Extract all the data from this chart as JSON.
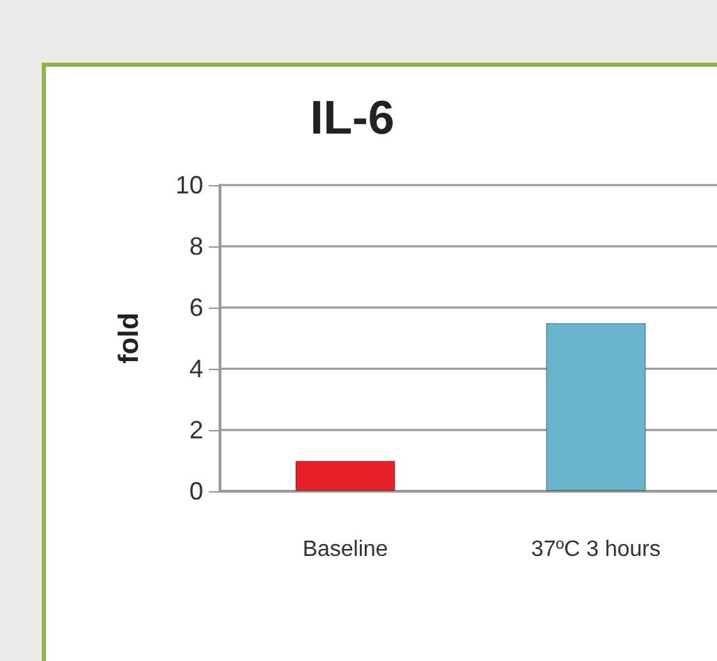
{
  "chart_data": {
    "type": "bar",
    "title": "IL-6",
    "ylabel": "fold",
    "categories": [
      "Baseline",
      "37ºC 3 hours"
    ],
    "values": [
      1,
      5.5
    ],
    "colors": [
      "#e8202a",
      "#6ab4cd"
    ],
    "ylim": [
      0,
      10
    ],
    "yticks": [
      0,
      2,
      4,
      6,
      8,
      10
    ],
    "grid": "y"
  }
}
